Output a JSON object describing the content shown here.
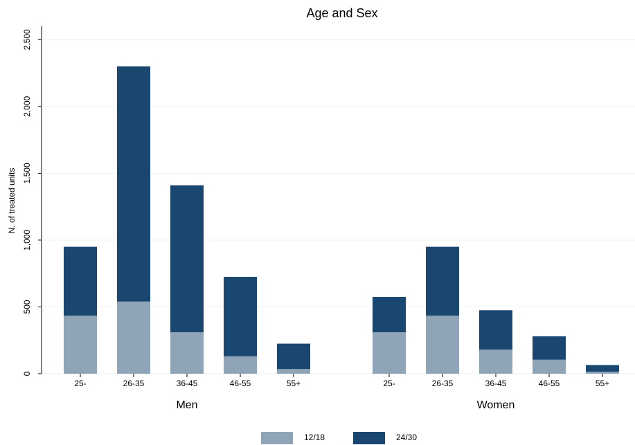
{
  "chart_data": {
    "type": "grouped-stacked-bar",
    "title": "Age and Sex",
    "y_label": "N. of treated units",
    "groups": [
      "Men",
      "Women"
    ],
    "categories": [
      [
        "25-",
        "26-35",
        "36-45",
        "46-55",
        "55+"
      ],
      [
        "25-",
        "26-35",
        "36-45",
        "46-55",
        "55+"
      ]
    ],
    "series": [
      {
        "name": "12/18",
        "color": "#90a4b7",
        "values": [
          [
            435,
            540,
            310,
            130,
            35
          ],
          [
            310,
            435,
            180,
            105,
            15
          ]
        ]
      },
      {
        "name": "24/30",
        "color": "#1a476f",
        "values": [
          [
            515,
            1760,
            1100,
            595,
            190
          ],
          [
            265,
            515,
            295,
            175,
            50
          ]
        ]
      }
    ],
    "ylim": [
      0,
      2600
    ],
    "yticks": [
      0,
      500,
      {
        "value": 1000,
        "label": "1,000"
      },
      {
        "value": 1500,
        "label": "1,500"
      },
      {
        "value": 2000,
        "label": "2,000"
      },
      {
        "value": 2500,
        "label": "2,500"
      }
    ],
    "grid": true,
    "legend": "bottom"
  }
}
